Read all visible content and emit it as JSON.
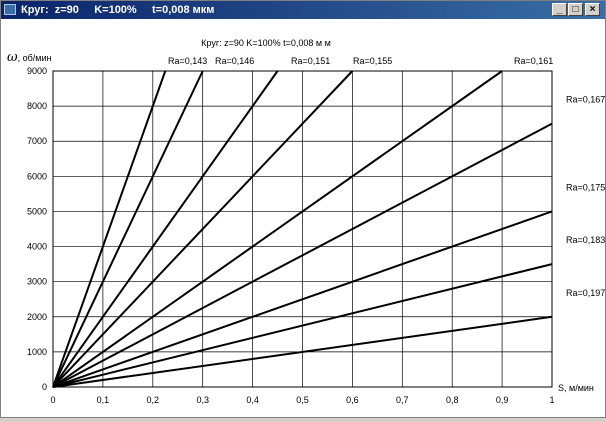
{
  "window": {
    "title": "Круг:  z=90     K=100%     t=0,008 мкм",
    "icon": "app-icon",
    "buttons": {
      "minimize": "_",
      "maximize": "□",
      "close": "×"
    }
  },
  "chart_data": {
    "type": "line",
    "title": "Круг:  z=90   K=100%    t=0,008 м м",
    "xlabel": "S, м/мин",
    "ylabel": "ω, об/мин",
    "xlim": [
      0,
      1
    ],
    "ylim": [
      0,
      9000
    ],
    "grid": true,
    "xticks": [
      "0",
      "0,1",
      "0,2",
      "0,3",
      "0,4",
      "0,5",
      "0,6",
      "0,7",
      "0,8",
      "0,9",
      "1"
    ],
    "yticks": [
      "0",
      "1000",
      "2000",
      "3000",
      "4000",
      "5000",
      "6000",
      "7000",
      "8000",
      "9000"
    ],
    "series": [
      {
        "name": "Ra=0,143",
        "x": [
          0,
          0.225
        ],
        "y": [
          0,
          9000
        ]
      },
      {
        "name": "Ra=0,146",
        "x": [
          0,
          0.3
        ],
        "y": [
          0,
          9000
        ]
      },
      {
        "name": "Ra=0,151",
        "x": [
          0,
          0.45
        ],
        "y": [
          0,
          9000
        ]
      },
      {
        "name": "Ra=0,155",
        "x": [
          0,
          0.6
        ],
        "y": [
          0,
          9000
        ]
      },
      {
        "name": "Ra=0,161",
        "x": [
          0,
          0.9
        ],
        "y": [
          0,
          9000
        ]
      },
      {
        "name": "Ra=0,167",
        "x": [
          0,
          1
        ],
        "y": [
          0,
          7500
        ]
      },
      {
        "name": "Ra=0,175",
        "x": [
          0,
          1
        ],
        "y": [
          0,
          5000
        ]
      },
      {
        "name": "Ra=0,183",
        "x": [
          0,
          1
        ],
        "y": [
          0,
          3500
        ]
      },
      {
        "name": "Ra=0,197",
        "x": [
          0,
          1
        ],
        "y": [
          0,
          2000
        ]
      }
    ]
  }
}
